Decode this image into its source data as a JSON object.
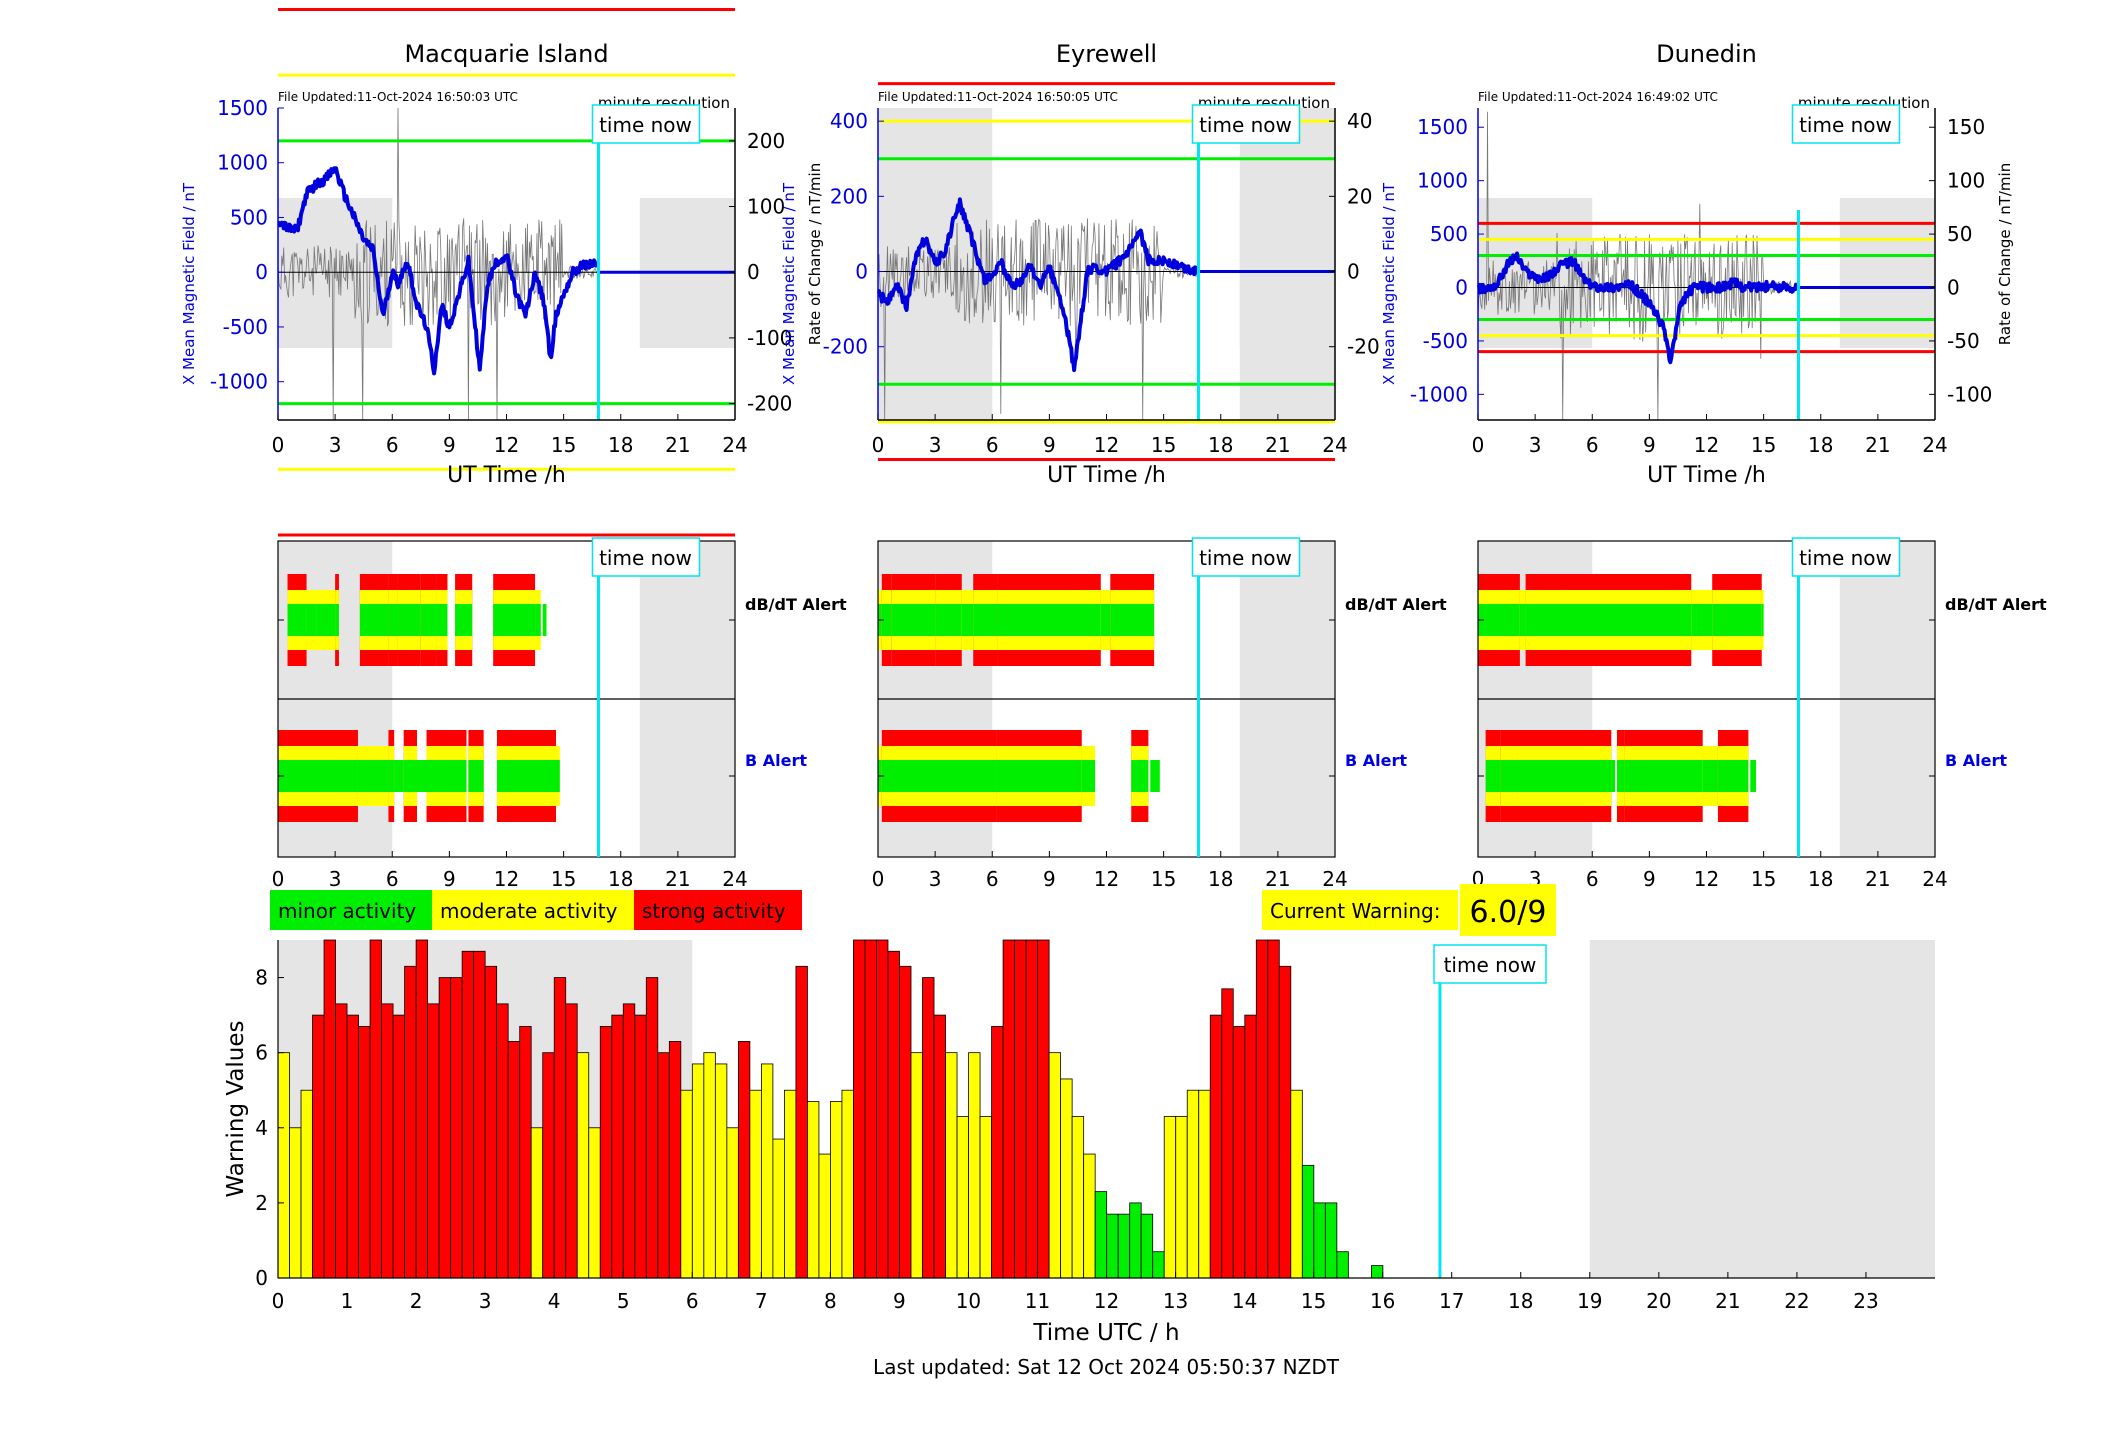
{
  "stations": [
    {
      "name": "Macquarie Island",
      "file_updated": "File Updated:11-Oct-2024 16:50:03 UTC",
      "left_label": "X Mean Magnetic Field / nT",
      "right_label": "",
      "left_ticks": [
        -1000,
        -500,
        0,
        500,
        1000,
        1500
      ],
      "left_range": [
        -1350,
        1500
      ],
      "right_ticks": [
        -200,
        -100,
        0,
        100,
        200
      ],
      "right_range": [
        -225,
        250
      ],
      "threshold_levels": [
        200,
        300,
        400
      ]
    },
    {
      "name": "Eyrewell",
      "file_updated": "File Updated:11-Oct-2024 16:50:05 UTC",
      "left_label": "X Mean Magnetic Field / nT",
      "right_label": "Rate of Change / nT/min",
      "left_ticks": [
        -200,
        0,
        200,
        400
      ],
      "left_range": [
        -395,
        435
      ],
      "right_ticks": [
        -20,
        0,
        20,
        40
      ],
      "right_range": [
        -39.5,
        43.5
      ],
      "threshold_levels": [
        30,
        40,
        50
      ]
    },
    {
      "name": "Dunedin",
      "file_updated": "File Updated:11-Oct-2024 16:49:02 UTC",
      "left_label": "X Mean Magnetic Field / nT",
      "right_label": "Rate of Change / nT/min",
      "left_ticks": [
        -1000,
        -500,
        0,
        500,
        1000,
        1500
      ],
      "left_range": [
        -1240,
        1680
      ],
      "right_ticks": [
        -100,
        -50,
        0,
        50,
        100,
        150
      ],
      "right_range": [
        -124,
        168
      ],
      "threshold_levels": [
        30,
        45,
        60
      ]
    }
  ],
  "labels": {
    "minute_resolution": "minute resolution",
    "time_now": "time now",
    "x_axis": "UT Time /h",
    "dbdt_alert": "dB/dT Alert",
    "b_alert": "B Alert",
    "bottom_x_axis": "Time UTC / h",
    "bottom_y_axis": "Warning Values",
    "last_updated": "Last updated: Sat 12 Oct 2024 05:50:37 NZDT"
  },
  "legend": {
    "minor": "minor activity",
    "moderate": "moderate activity",
    "strong": "strong activity"
  },
  "current_warning": {
    "label": "Current Warning:",
    "value": "6.0/9"
  },
  "colors": {
    "minor": "#00ee00",
    "moderate": "#ffff00",
    "strong": "#ff0000",
    "field": "#0000dd",
    "now": "#00e5ee",
    "shade": "#e5e5e5"
  },
  "time_now_h": 16.83,
  "shading": {
    "before_h": 6,
    "after_h": 19
  },
  "top_x_ticks": [
    0,
    3,
    6,
    9,
    12,
    15,
    18,
    21,
    24
  ],
  "bottom_x_ticks": [
    0,
    1,
    2,
    3,
    4,
    5,
    6,
    7,
    8,
    9,
    10,
    11,
    12,
    13,
    14,
    15,
    16,
    17,
    18,
    19,
    20,
    21,
    22,
    23
  ],
  "bottom_y_ticks": [
    0,
    2,
    4,
    6,
    8
  ],
  "alerts": {
    "Macquarie Island": {
      "dbdt": [
        [
          0.5,
          1.5,
          3
        ],
        [
          1.5,
          2.0,
          2
        ],
        [
          2.0,
          3.0,
          2
        ],
        [
          3.0,
          3.2,
          3
        ],
        [
          4.3,
          5.8,
          3
        ],
        [
          5.8,
          6.3,
          3
        ],
        [
          6.3,
          7.5,
          3
        ],
        [
          7.5,
          8.3,
          3
        ],
        [
          8.3,
          8.9,
          3
        ],
        [
          9.3,
          10.2,
          3
        ],
        [
          11.3,
          13.5,
          3
        ],
        [
          13.5,
          13.8,
          2
        ],
        [
          13.9,
          14.1,
          1
        ]
      ],
      "b": [
        [
          0,
          0.5,
          3
        ],
        [
          0.5,
          4.2,
          3
        ],
        [
          4.2,
          5.8,
          2
        ],
        [
          5.8,
          6.1,
          3
        ],
        [
          6.1,
          6.6,
          1
        ],
        [
          6.6,
          7.3,
          3
        ],
        [
          7.3,
          7.8,
          1
        ],
        [
          7.8,
          9.9,
          3
        ],
        [
          10.0,
          10.8,
          3
        ],
        [
          11.5,
          14.6,
          3
        ],
        [
          14.6,
          14.8,
          2
        ]
      ]
    },
    "Eyrewell": {
      "dbdt": [
        [
          0,
          0.2,
          2
        ],
        [
          0.2,
          0.7,
          3
        ],
        [
          0.7,
          3.0,
          3
        ],
        [
          3.0,
          4.4,
          3
        ],
        [
          4.4,
          5.0,
          2
        ],
        [
          5.0,
          6.3,
          3
        ],
        [
          6.3,
          11.7,
          3
        ],
        [
          11.7,
          12.2,
          2
        ],
        [
          12.2,
          14.5,
          3
        ]
      ],
      "b": [
        [
          0,
          0.2,
          2
        ],
        [
          0.2,
          6.2,
          3
        ],
        [
          6.2,
          10.7,
          3
        ],
        [
          10.7,
          11.4,
          2
        ],
        [
          13.3,
          14.2,
          3
        ],
        [
          14.3,
          14.8,
          1
        ]
      ]
    },
    "Dunedin": {
      "dbdt": [
        [
          0,
          2.2,
          3
        ],
        [
          2.2,
          2.5,
          2
        ],
        [
          2.5,
          4.7,
          3
        ],
        [
          4.7,
          11.2,
          3
        ],
        [
          11.2,
          11.5,
          2
        ],
        [
          11.5,
          12.3,
          2
        ],
        [
          12.3,
          14.9,
          3
        ],
        [
          14.9,
          15.0,
          2
        ]
      ],
      "b": [
        [
          0.4,
          1.2,
          3
        ],
        [
          1.2,
          2.1,
          3
        ],
        [
          2.1,
          7.0,
          3
        ],
        [
          7.0,
          7.2,
          1
        ],
        [
          7.3,
          7.7,
          3
        ],
        [
          7.7,
          11.8,
          3
        ],
        [
          11.8,
          12.6,
          2
        ],
        [
          12.6,
          14.2,
          3
        ],
        [
          14.3,
          14.6,
          1
        ]
      ]
    }
  },
  "chart_data": {
    "type": "bar",
    "xlabel": "Time UTC / h",
    "ylabel": "Warning Values",
    "ylim": [
      0,
      9
    ],
    "xlim": [
      0,
      24
    ],
    "bin_width_h": 0.1667,
    "start_h": 0,
    "values": [
      6,
      4,
      5,
      7,
      9,
      7.3,
      7,
      6.7,
      9,
      7.3,
      7,
      8.3,
      9,
      7.3,
      8,
      8,
      8.7,
      8.7,
      8.3,
      7.3,
      6.3,
      6.7,
      4,
      6,
      8,
      7.3,
      6,
      4,
      6.7,
      7,
      7.3,
      7,
      8,
      6,
      6.3,
      5,
      5.7,
      6,
      5.7,
      4,
      6.3,
      5,
      5.7,
      3.7,
      5,
      8.3,
      4.7,
      3.3,
      4.7,
      5,
      9,
      9,
      9,
      8.7,
      8.3,
      6,
      8,
      7,
      6,
      4.3,
      6,
      4.3,
      6.7,
      9,
      9,
      9,
      9,
      6,
      5.3,
      4.3,
      3.3,
      2.3,
      1.7,
      1.7,
      2,
      1.7,
      0.7,
      4.3,
      4.3,
      5,
      5,
      7,
      7.7,
      6.7,
      7,
      9,
      9,
      8.3,
      5,
      3,
      2,
      2,
      0.7,
      0,
      0,
      0.33
    ],
    "levels": [
      2,
      2,
      2,
      3,
      3,
      3,
      3,
      3,
      3,
      3,
      3,
      3,
      3,
      3,
      3,
      3,
      3,
      3,
      3,
      3,
      3,
      3,
      2,
      3,
      3,
      3,
      2,
      2,
      3,
      3,
      3,
      3,
      3,
      3,
      3,
      2,
      2,
      2,
      2,
      2,
      3,
      2,
      2,
      2,
      2,
      3,
      2,
      2,
      2,
      2,
      3,
      3,
      3,
      3,
      3,
      2,
      3,
      3,
      2,
      2,
      2,
      2,
      3,
      3,
      3,
      3,
      3,
      2,
      2,
      2,
      2,
      1,
      1,
      1,
      1,
      1,
      1,
      2,
      2,
      2,
      2,
      3,
      3,
      3,
      3,
      3,
      3,
      3,
      2,
      1,
      1,
      1,
      1,
      1,
      1,
      1
    ]
  }
}
